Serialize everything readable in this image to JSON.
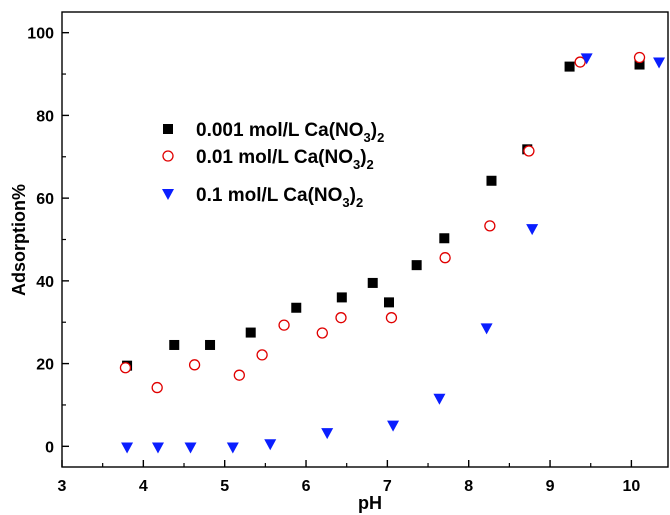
{
  "chart_data": {
    "type": "scatter",
    "title": "",
    "xlabel": "pH",
    "ylabel": "Adsorption%",
    "xlim": [
      3,
      10.45
    ],
    "ylim": [
      -5,
      105
    ],
    "xticks": [
      3,
      4,
      5,
      6,
      7,
      8,
      9,
      10
    ],
    "yticks": [
      0,
      20,
      40,
      60,
      80,
      100
    ],
    "grid": false,
    "legend_position": "top-left",
    "series": [
      {
        "name": "0.001 mol/L Ca(NO3)2",
        "legend_text": "0.001 mol/L Ca(NO",
        "legend_sub": "3",
        "legend_tail": ")",
        "legend_sub2": "2",
        "marker": "square",
        "color": "#000000",
        "x": [
          3.8,
          4.38,
          4.82,
          5.32,
          5.88,
          6.44,
          6.82,
          7.02,
          7.36,
          7.7,
          8.28,
          8.72,
          9.24,
          10.1
        ],
        "y": [
          19.5,
          24.5,
          24.5,
          27.5,
          33.5,
          36.0,
          39.5,
          34.8,
          43.8,
          50.3,
          64.2,
          71.8,
          91.8,
          92.3
        ]
      },
      {
        "name": "0.01 mol/L Ca(NO3)2",
        "legend_text": "0.01 mol/L Ca(NO",
        "legend_sub": "3",
        "legend_tail": ")",
        "legend_sub2": "2",
        "marker": "circle",
        "color": "#e00000",
        "x": [
          3.78,
          4.17,
          4.63,
          5.18,
          5.46,
          5.73,
          6.2,
          6.43,
          7.05,
          7.71,
          8.26,
          8.74,
          9.37,
          10.1
        ],
        "y": [
          19.0,
          14.2,
          19.7,
          17.2,
          22.1,
          29.3,
          27.4,
          31.1,
          31.1,
          45.6,
          53.3,
          71.4,
          92.9,
          94.0
        ]
      },
      {
        "name": "0.1 mol/L Ca(NO3)2",
        "legend_text": "0.1 mol/L Ca(NO",
        "legend_sub": "3",
        "legend_tail": ")",
        "legend_sub2": "2",
        "marker": "triangle-down",
        "color": "#0a1eff",
        "x": [
          3.8,
          4.18,
          4.58,
          5.1,
          5.56,
          6.26,
          7.07,
          7.64,
          8.22,
          8.78,
          9.45,
          10.34
        ],
        "y": [
          -0.3,
          -0.3,
          -0.3,
          -0.3,
          0.5,
          3.2,
          5.0,
          11.5,
          28.5,
          52.5,
          93.8,
          92.8
        ]
      }
    ]
  }
}
